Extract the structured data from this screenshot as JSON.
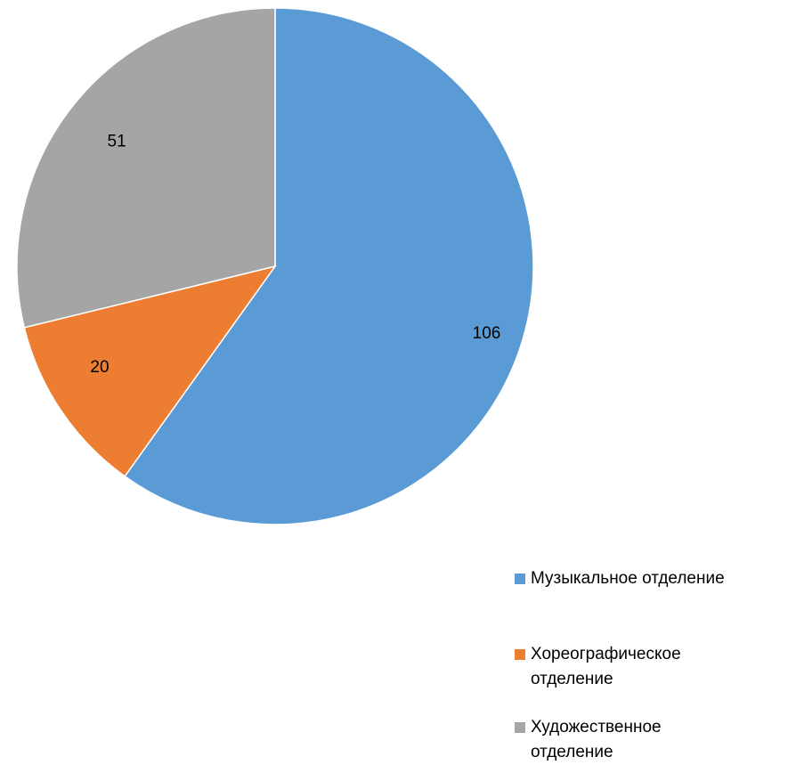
{
  "chart_data": {
    "type": "pie",
    "slices": [
      {
        "name": "Музыкальное отделение",
        "value": 106,
        "label": "106",
        "color": "#5B9BD5"
      },
      {
        "name": "Хореографическое отделение",
        "value": 20,
        "label": "20",
        "color": "#ED7D31"
      },
      {
        "name": "Художественное отделение",
        "value": 51,
        "label": "51",
        "color": "#A5A5A5"
      }
    ],
    "start_angle": "top (12 o'clock), clockwise",
    "legend": {
      "position": "bottom-right",
      "items": [
        {
          "label": "Музыкальное отделение",
          "color": "#5B9BD5"
        },
        {
          "label": "Хореографическое отделение",
          "color": "#ED7D31"
        },
        {
          "label": "Художественное отделение",
          "color": "#A5A5A5"
        }
      ]
    }
  }
}
